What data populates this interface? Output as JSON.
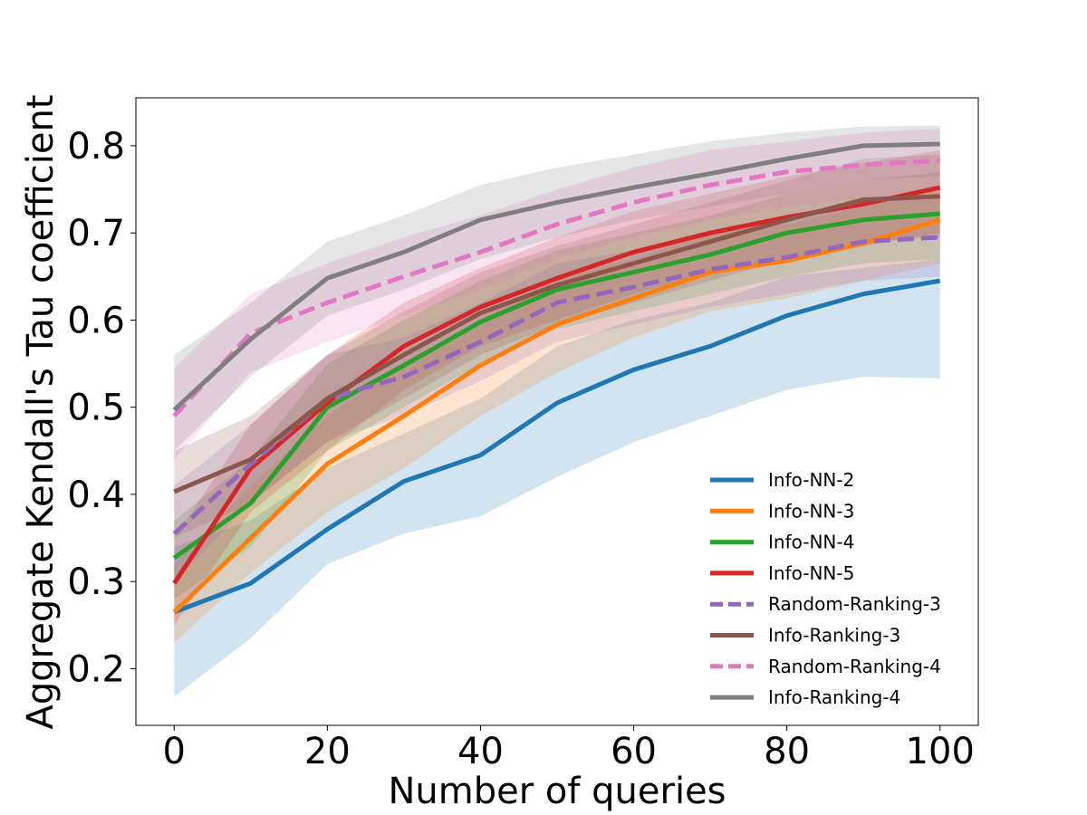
{
  "chart_data": {
    "type": "line",
    "title": "",
    "xlabel": "Number of queries",
    "ylabel": "Aggregate Kendall's Tau coefficient",
    "xlim": [
      -5,
      105
    ],
    "ylim": [
      0.135,
      0.855
    ],
    "xticks": [
      0,
      20,
      40,
      60,
      80,
      100
    ],
    "yticks": [
      0.2,
      0.3,
      0.4,
      0.5,
      0.6,
      0.7,
      0.8
    ],
    "xtick_labels": [
      "0",
      "20",
      "40",
      "60",
      "80",
      "100"
    ],
    "ytick_labels": [
      "0.2",
      "0.3",
      "0.4",
      "0.5",
      "0.6",
      "0.7",
      "0.8"
    ],
    "grid": false,
    "legend_position": "lower-right",
    "x": [
      0,
      10,
      20,
      30,
      40,
      50,
      60,
      70,
      80,
      90,
      100
    ],
    "series": [
      {
        "name": "Info-NN-2",
        "color": "#1f77b4",
        "style": "solid",
        "values": [
          0.265,
          0.298,
          0.36,
          0.415,
          0.445,
          0.505,
          0.543,
          0.57,
          0.605,
          0.63,
          0.645
        ],
        "band_lower": [
          0.168,
          0.235,
          0.32,
          0.355,
          0.375,
          0.42,
          0.46,
          0.49,
          0.52,
          0.535,
          0.533
        ],
        "band_upper": [
          0.34,
          0.37,
          0.43,
          0.47,
          0.51,
          0.57,
          0.6,
          0.62,
          0.65,
          0.66,
          0.67
        ]
      },
      {
        "name": "Info-NN-3",
        "color": "#ff7f0e",
        "style": "solid",
        "values": [
          0.265,
          0.35,
          0.435,
          0.49,
          0.548,
          0.595,
          0.625,
          0.655,
          0.668,
          0.688,
          0.715
        ],
        "band_lower": [
          0.23,
          0.31,
          0.38,
          0.43,
          0.49,
          0.54,
          0.58,
          0.61,
          0.625,
          0.645,
          0.665
        ],
        "band_upper": [
          0.32,
          0.41,
          0.49,
          0.55,
          0.6,
          0.65,
          0.67,
          0.7,
          0.71,
          0.73,
          0.75
        ]
      },
      {
        "name": "Info-NN-4",
        "color": "#2ca02c",
        "style": "solid",
        "values": [
          0.327,
          0.39,
          0.5,
          0.548,
          0.598,
          0.635,
          0.655,
          0.675,
          0.7,
          0.715,
          0.722
        ],
        "band_lower": [
          0.28,
          0.34,
          0.45,
          0.5,
          0.55,
          0.59,
          0.61,
          0.63,
          0.65,
          0.665,
          0.67
        ],
        "band_upper": [
          0.37,
          0.44,
          0.55,
          0.6,
          0.645,
          0.68,
          0.7,
          0.72,
          0.745,
          0.76,
          0.77
        ]
      },
      {
        "name": "Info-NN-5",
        "color": "#d62728",
        "style": "solid",
        "values": [
          0.298,
          0.43,
          0.505,
          0.57,
          0.615,
          0.648,
          0.678,
          0.7,
          0.718,
          0.733,
          0.752
        ],
        "band_lower": [
          0.25,
          0.38,
          0.45,
          0.52,
          0.57,
          0.6,
          0.63,
          0.655,
          0.67,
          0.685,
          0.7
        ],
        "band_upper": [
          0.35,
          0.48,
          0.56,
          0.62,
          0.66,
          0.695,
          0.725,
          0.745,
          0.765,
          0.78,
          0.795
        ]
      },
      {
        "name": "Random-Ranking-3",
        "color": "#9467bd",
        "style": "dashed",
        "values": [
          0.355,
          0.435,
          0.51,
          0.535,
          0.575,
          0.62,
          0.638,
          0.658,
          0.672,
          0.69,
          0.695
        ],
        "band_lower": [
          0.3,
          0.39,
          0.46,
          0.49,
          0.53,
          0.575,
          0.595,
          0.615,
          0.63,
          0.645,
          0.65
        ],
        "band_upper": [
          0.41,
          0.48,
          0.56,
          0.58,
          0.62,
          0.665,
          0.68,
          0.7,
          0.715,
          0.735,
          0.74
        ]
      },
      {
        "name": "Info-Ranking-3",
        "color": "#8c564b",
        "style": "solid",
        "values": [
          0.403,
          0.44,
          0.51,
          0.56,
          0.608,
          0.64,
          0.665,
          0.69,
          0.715,
          0.738,
          0.742
        ],
        "band_lower": [
          0.35,
          0.39,
          0.46,
          0.51,
          0.56,
          0.595,
          0.62,
          0.645,
          0.67,
          0.69,
          0.695
        ],
        "band_upper": [
          0.45,
          0.49,
          0.56,
          0.61,
          0.655,
          0.685,
          0.71,
          0.735,
          0.76,
          0.785,
          0.79
        ]
      },
      {
        "name": "Random-Ranking-4",
        "color": "#e377c2",
        "style": "dashed",
        "values": [
          0.49,
          0.585,
          0.62,
          0.65,
          0.678,
          0.71,
          0.735,
          0.755,
          0.77,
          0.778,
          0.783
        ],
        "band_lower": [
          0.44,
          0.54,
          0.575,
          0.605,
          0.635,
          0.67,
          0.695,
          0.715,
          0.73,
          0.74,
          0.745
        ],
        "band_upper": [
          0.545,
          0.63,
          0.665,
          0.695,
          0.72,
          0.75,
          0.775,
          0.795,
          0.805,
          0.815,
          0.82
        ]
      },
      {
        "name": "Info-Ranking-4",
        "color": "#7f7f7f",
        "style": "solid",
        "values": [
          0.497,
          0.578,
          0.648,
          0.678,
          0.715,
          0.735,
          0.752,
          0.768,
          0.785,
          0.8,
          0.802
        ],
        "band_lower": [
          0.45,
          0.535,
          0.605,
          0.635,
          0.67,
          0.695,
          0.715,
          0.73,
          0.745,
          0.76,
          0.765
        ],
        "band_upper": [
          0.56,
          0.62,
          0.69,
          0.72,
          0.755,
          0.775,
          0.79,
          0.805,
          0.815,
          0.822,
          0.823
        ]
      }
    ]
  }
}
